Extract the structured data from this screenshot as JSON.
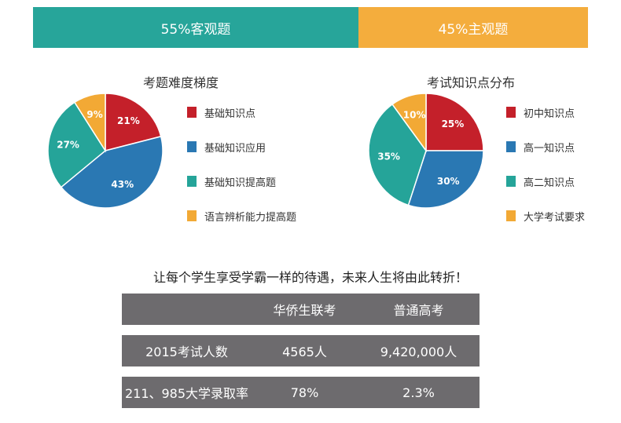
{
  "ratio_bar": {
    "objective_label": "55%客观题",
    "subjective_label": "45%主观题",
    "objective_color": "#27a59a",
    "subjective_color": "#f4ad3d"
  },
  "chart_data": [
    {
      "type": "pie",
      "title": "考题难度梯度",
      "legend_position": "right",
      "slices": [
        {
          "label": "基础知识点",
          "value": 21,
          "value_label": "21%",
          "color": "#c4202a"
        },
        {
          "label": "基础知识应用",
          "value": 43,
          "value_label": "43%",
          "color": "#2a78b3"
        },
        {
          "label": "基础知识提高题",
          "value": 27,
          "value_label": "27%",
          "color": "#25a499"
        },
        {
          "label": "语言辨析能力提高题",
          "value": 9,
          "value_label": "9%",
          "color": "#f2a935"
        }
      ]
    },
    {
      "type": "pie",
      "title": "考试知识点分布",
      "legend_position": "right",
      "slices": [
        {
          "label": "初中知识点",
          "value": 25,
          "value_label": "25%",
          "color": "#c4202a"
        },
        {
          "label": "高一知识点",
          "value": 30,
          "value_label": "30%",
          "color": "#2a78b3"
        },
        {
          "label": "高二知识点",
          "value": 35,
          "value_label": "35%",
          "color": "#25a499"
        },
        {
          "label": "大学考试要求",
          "value": 10,
          "value_label": "10%",
          "color": "#f2a935"
        }
      ]
    }
  ],
  "slogan": "让每个学生享受学霸一样的待遇，未来人生将由此转折！",
  "table": {
    "header": [
      "",
      "华侨生联考",
      "普通高考"
    ],
    "rows": [
      [
        "2015考试人数",
        "4565人",
        "9,420,000人"
      ],
      [
        "211、985大学录取率",
        "78%",
        "2.3%"
      ]
    ]
  }
}
